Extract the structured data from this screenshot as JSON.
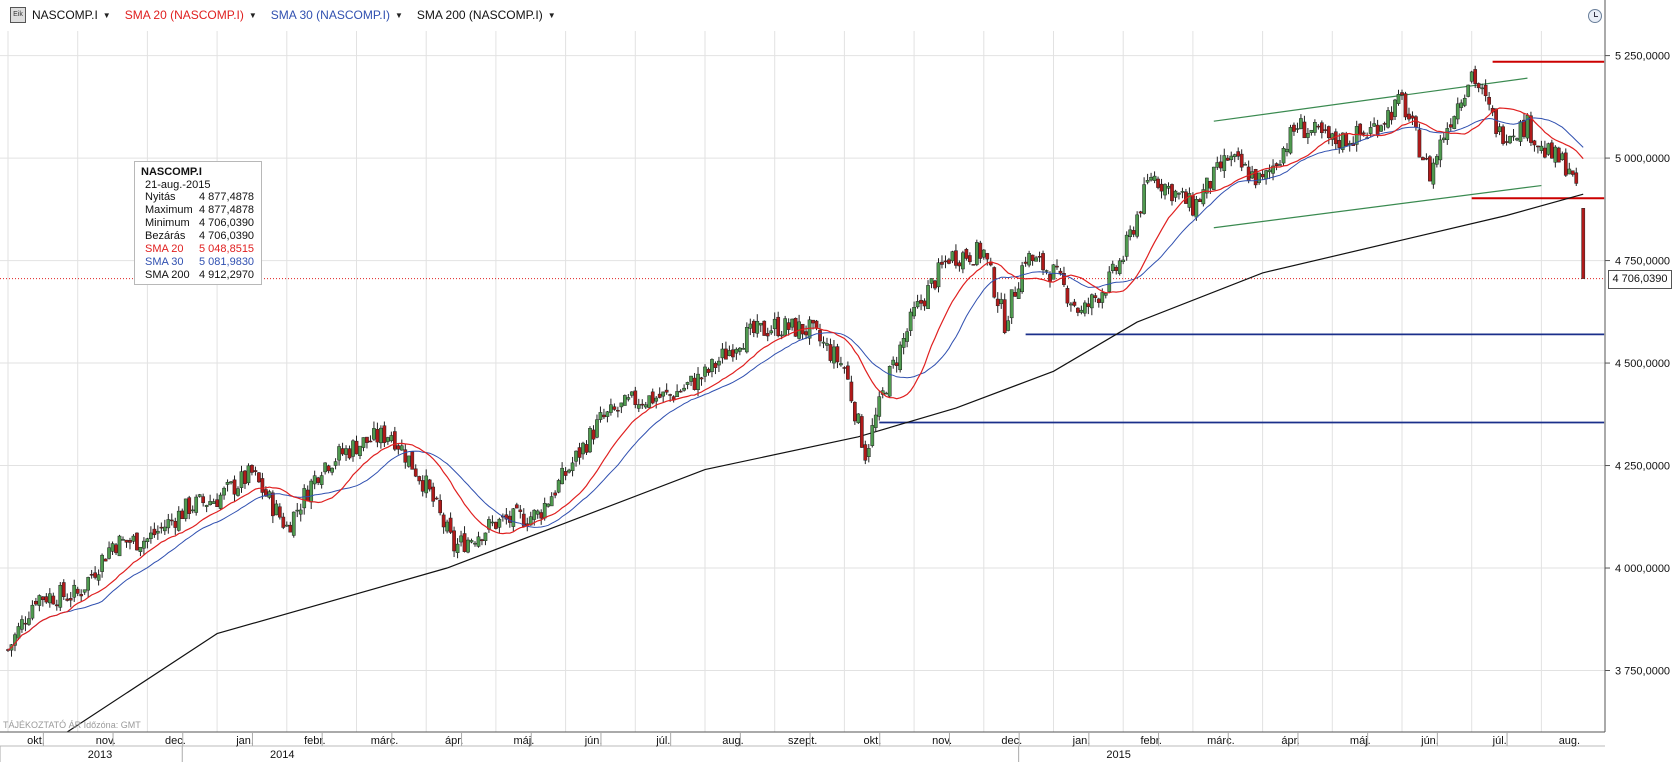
{
  "toolbar": {
    "symbol": "NASCOMP.I",
    "indicators": [
      {
        "label": "SMA 20 (NASCOMP.I)",
        "color": "#e02020"
      },
      {
        "label": "SMA 30 (NASCOMP.I)",
        "color": "#3050b0"
      },
      {
        "label": "SMA 200 (NASCOMP.I)",
        "color": "#111111"
      }
    ]
  },
  "info_box": {
    "title": "NASCOMP.I",
    "date": "21-aug.-2015",
    "rows": [
      {
        "label": "Nyitás",
        "value": "4 877,4878",
        "color": "#111111"
      },
      {
        "label": "Maximum",
        "value": "4 877,4878",
        "color": "#111111"
      },
      {
        "label": "Minimum",
        "value": "4 706,0390",
        "color": "#111111"
      },
      {
        "label": "Bezárás",
        "value": "4 706,0390",
        "color": "#111111"
      },
      {
        "label": "SMA 20",
        "value": "5 048,8515",
        "color": "#e02020"
      },
      {
        "label": "SMA 30",
        "value": "5 081,9830",
        "color": "#3050b0"
      },
      {
        "label": "SMA 200",
        "value": "4 912,2970",
        "color": "#111111"
      }
    ]
  },
  "footer_note": "TÁJÉKOZTATÓ ÁR   Időzóna: GMT",
  "last_price_label": "4 706,0390",
  "chart_data": {
    "type": "candlestick",
    "symbol": "NASCOMP.I",
    "ylim": [
      3600,
      5310
    ],
    "y_ticks": [
      {
        "value": 3750,
        "label": "3 750,0000"
      },
      {
        "value": 4000,
        "label": "4 000,0000"
      },
      {
        "value": 4250,
        "label": "4 250,0000"
      },
      {
        "value": 4500,
        "label": "4 500,0000"
      },
      {
        "value": 4750,
        "label": "4 750,0000"
      },
      {
        "value": 5000,
        "label": "5 000,0000"
      },
      {
        "value": 5250,
        "label": "5 250,0000"
      }
    ],
    "x_months": [
      "okt.",
      "nov.",
      "dec.",
      "jan.",
      "febr.",
      "márc.",
      "ápr.",
      "máj.",
      "jún.",
      "júl.",
      "aug.",
      "szept.",
      "okt.",
      "nov.",
      "dec.",
      "jan.",
      "febr.",
      "márc.",
      "ápr.",
      "máj.",
      "jún.",
      "júl.",
      "aug."
    ],
    "x_years": [
      {
        "label": "2013",
        "start": 0,
        "end": 3
      },
      {
        "label": "2014",
        "start": 3,
        "end": 15
      },
      {
        "label": "2015",
        "start": 15,
        "end": 23
      }
    ],
    "close_anchors": [
      [
        0,
        3800
      ],
      [
        0.4,
        3930
      ],
      [
        1,
        3935
      ],
      [
        1.5,
        4060
      ],
      [
        2,
        4070
      ],
      [
        2.6,
        4150
      ],
      [
        3,
        4170
      ],
      [
        3.5,
        4230
      ],
      [
        4,
        4100
      ],
      [
        4.5,
        4250
      ],
      [
        5,
        4300
      ],
      [
        5.5,
        4330
      ],
      [
        6,
        4200
      ],
      [
        6.4,
        4050
      ],
      [
        7,
        4110
      ],
      [
        7.6,
        4130
      ],
      [
        8,
        4230
      ],
      [
        8.5,
        4360
      ],
      [
        9,
        4410
      ],
      [
        9.5,
        4420
      ],
      [
        10,
        4470
      ],
      [
        10.5,
        4560
      ],
      [
        11,
        4590
      ],
      [
        11.5,
        4580
      ],
      [
        12,
        4490
      ],
      [
        12.3,
        4280
      ],
      [
        12.6,
        4450
      ],
      [
        13,
        4620
      ],
      [
        13.5,
        4760
      ],
      [
        14,
        4770
      ],
      [
        14.3,
        4600
      ],
      [
        14.6,
        4760
      ],
      [
        15,
        4720
      ],
      [
        15.4,
        4620
      ],
      [
        15.8,
        4700
      ],
      [
        16,
        4760
      ],
      [
        16.4,
        4960
      ],
      [
        17,
        4880
      ],
      [
        17.5,
        5000
      ],
      [
        18,
        4940
      ],
      [
        18.5,
        5080
      ],
      [
        19,
        5040
      ],
      [
        19.5,
        5060
      ],
      [
        20,
        5140
      ],
      [
        20.4,
        4960
      ],
      [
        20.6,
        5060
      ],
      [
        21,
        5210
      ],
      [
        21.4,
        5060
      ],
      [
        21.8,
        5080
      ],
      [
        22,
        5020
      ],
      [
        22.4,
        4980
      ],
      [
        22.55,
        4877
      ],
      [
        22.6,
        4706
      ]
    ],
    "last_candle": {
      "date": "21-aug.-2015",
      "open": 4877.4878,
      "high": 4877.4878,
      "low": 4706.039,
      "close": 4706.039
    },
    "series": [
      {
        "name": "SMA 20",
        "color": "#e02020",
        "last": 5048.8515
      },
      {
        "name": "SMA 30",
        "color": "#3050b0",
        "last": 5081.983
      },
      {
        "name": "SMA 200",
        "color": "#111111",
        "last": 4912.297,
        "points": [
          [
            0.85,
            3600
          ],
          [
            3,
            3840
          ],
          [
            6.3,
            4000
          ],
          [
            8,
            4110
          ],
          [
            10,
            4240
          ],
          [
            12.2,
            4320
          ],
          [
            13.6,
            4390
          ],
          [
            15,
            4480
          ],
          [
            16.2,
            4600
          ],
          [
            18,
            4720
          ],
          [
            20,
            4800
          ],
          [
            21.5,
            4860
          ],
          [
            22.6,
            4912
          ]
        ]
      }
    ],
    "drawn_lines": [
      {
        "color": "#3a8a50",
        "from": [
          17.3,
          5090
        ],
        "to": [
          21.8,
          5195
        ]
      },
      {
        "color": "#3a8a50",
        "from": [
          17.3,
          4830
        ],
        "to": [
          22.0,
          4933
        ]
      },
      {
        "color": "#cc0000",
        "from": [
          21.3,
          5235
        ],
        "to": [
          22.9,
          5235
        ]
      },
      {
        "color": "#cc0000",
        "from": [
          21.0,
          4902
        ],
        "to": [
          22.9,
          4902
        ]
      },
      {
        "color": "#1a2f8a",
        "from": [
          14.6,
          4570
        ],
        "to": [
          22.9,
          4570
        ]
      },
      {
        "color": "#1a2f8a",
        "from": [
          12.5,
          4355
        ],
        "to": [
          22.9,
          4355
        ]
      }
    ],
    "reference_level": 4706.039
  }
}
